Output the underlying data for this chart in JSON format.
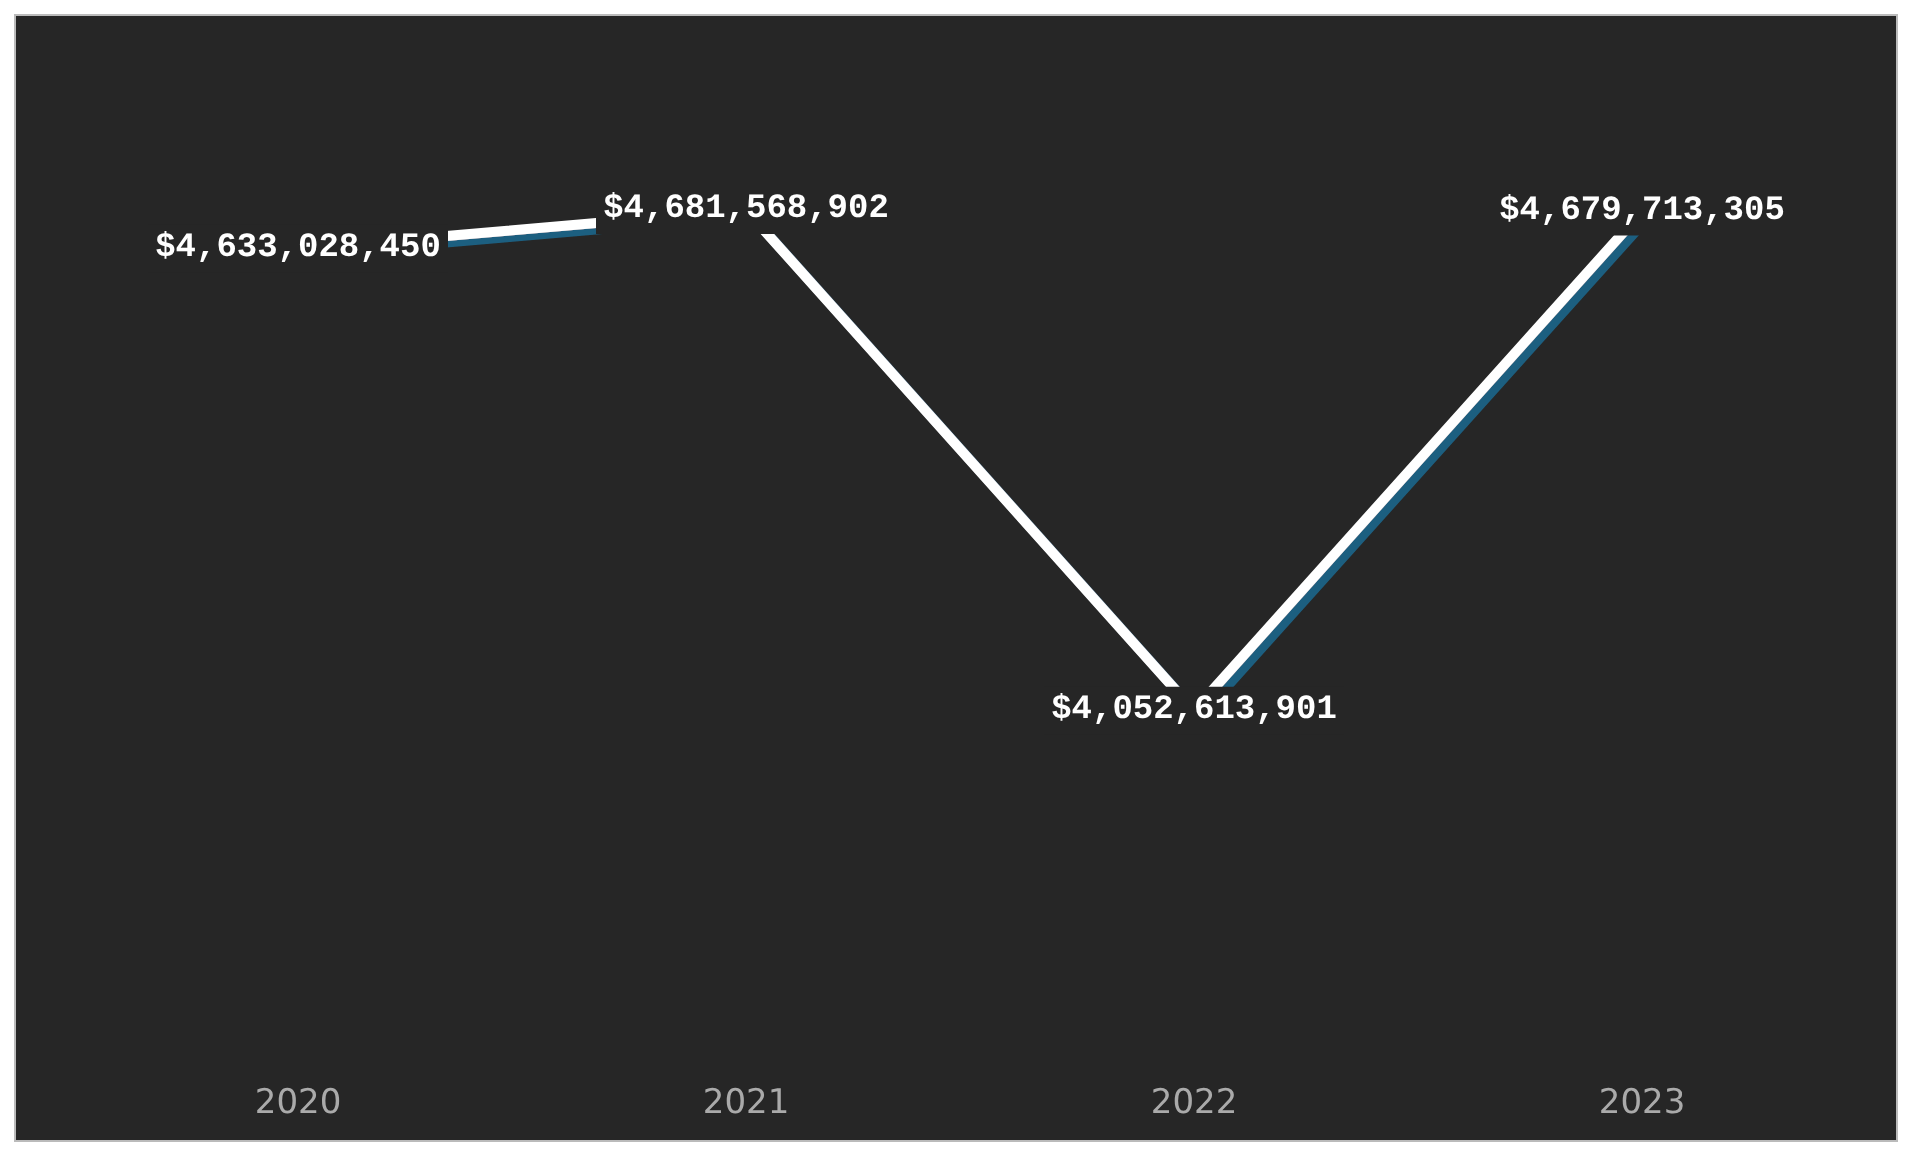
{
  "chart_data": {
    "type": "line",
    "categories": [
      "2020",
      "2021",
      "2022",
      "2023"
    ],
    "series": [
      {
        "color": "#ffffff",
        "values": [
          4633028450,
          4681568902,
          4052613901,
          4679713305
        ],
        "value_labels": [
          "$4,633,028,450",
          "$4,681,568,902",
          "$4,052,613,901",
          "$4,679,713,305"
        ]
      }
    ],
    "grid": false,
    "line_style": "solid",
    "tick_labels": "x"
  }
}
